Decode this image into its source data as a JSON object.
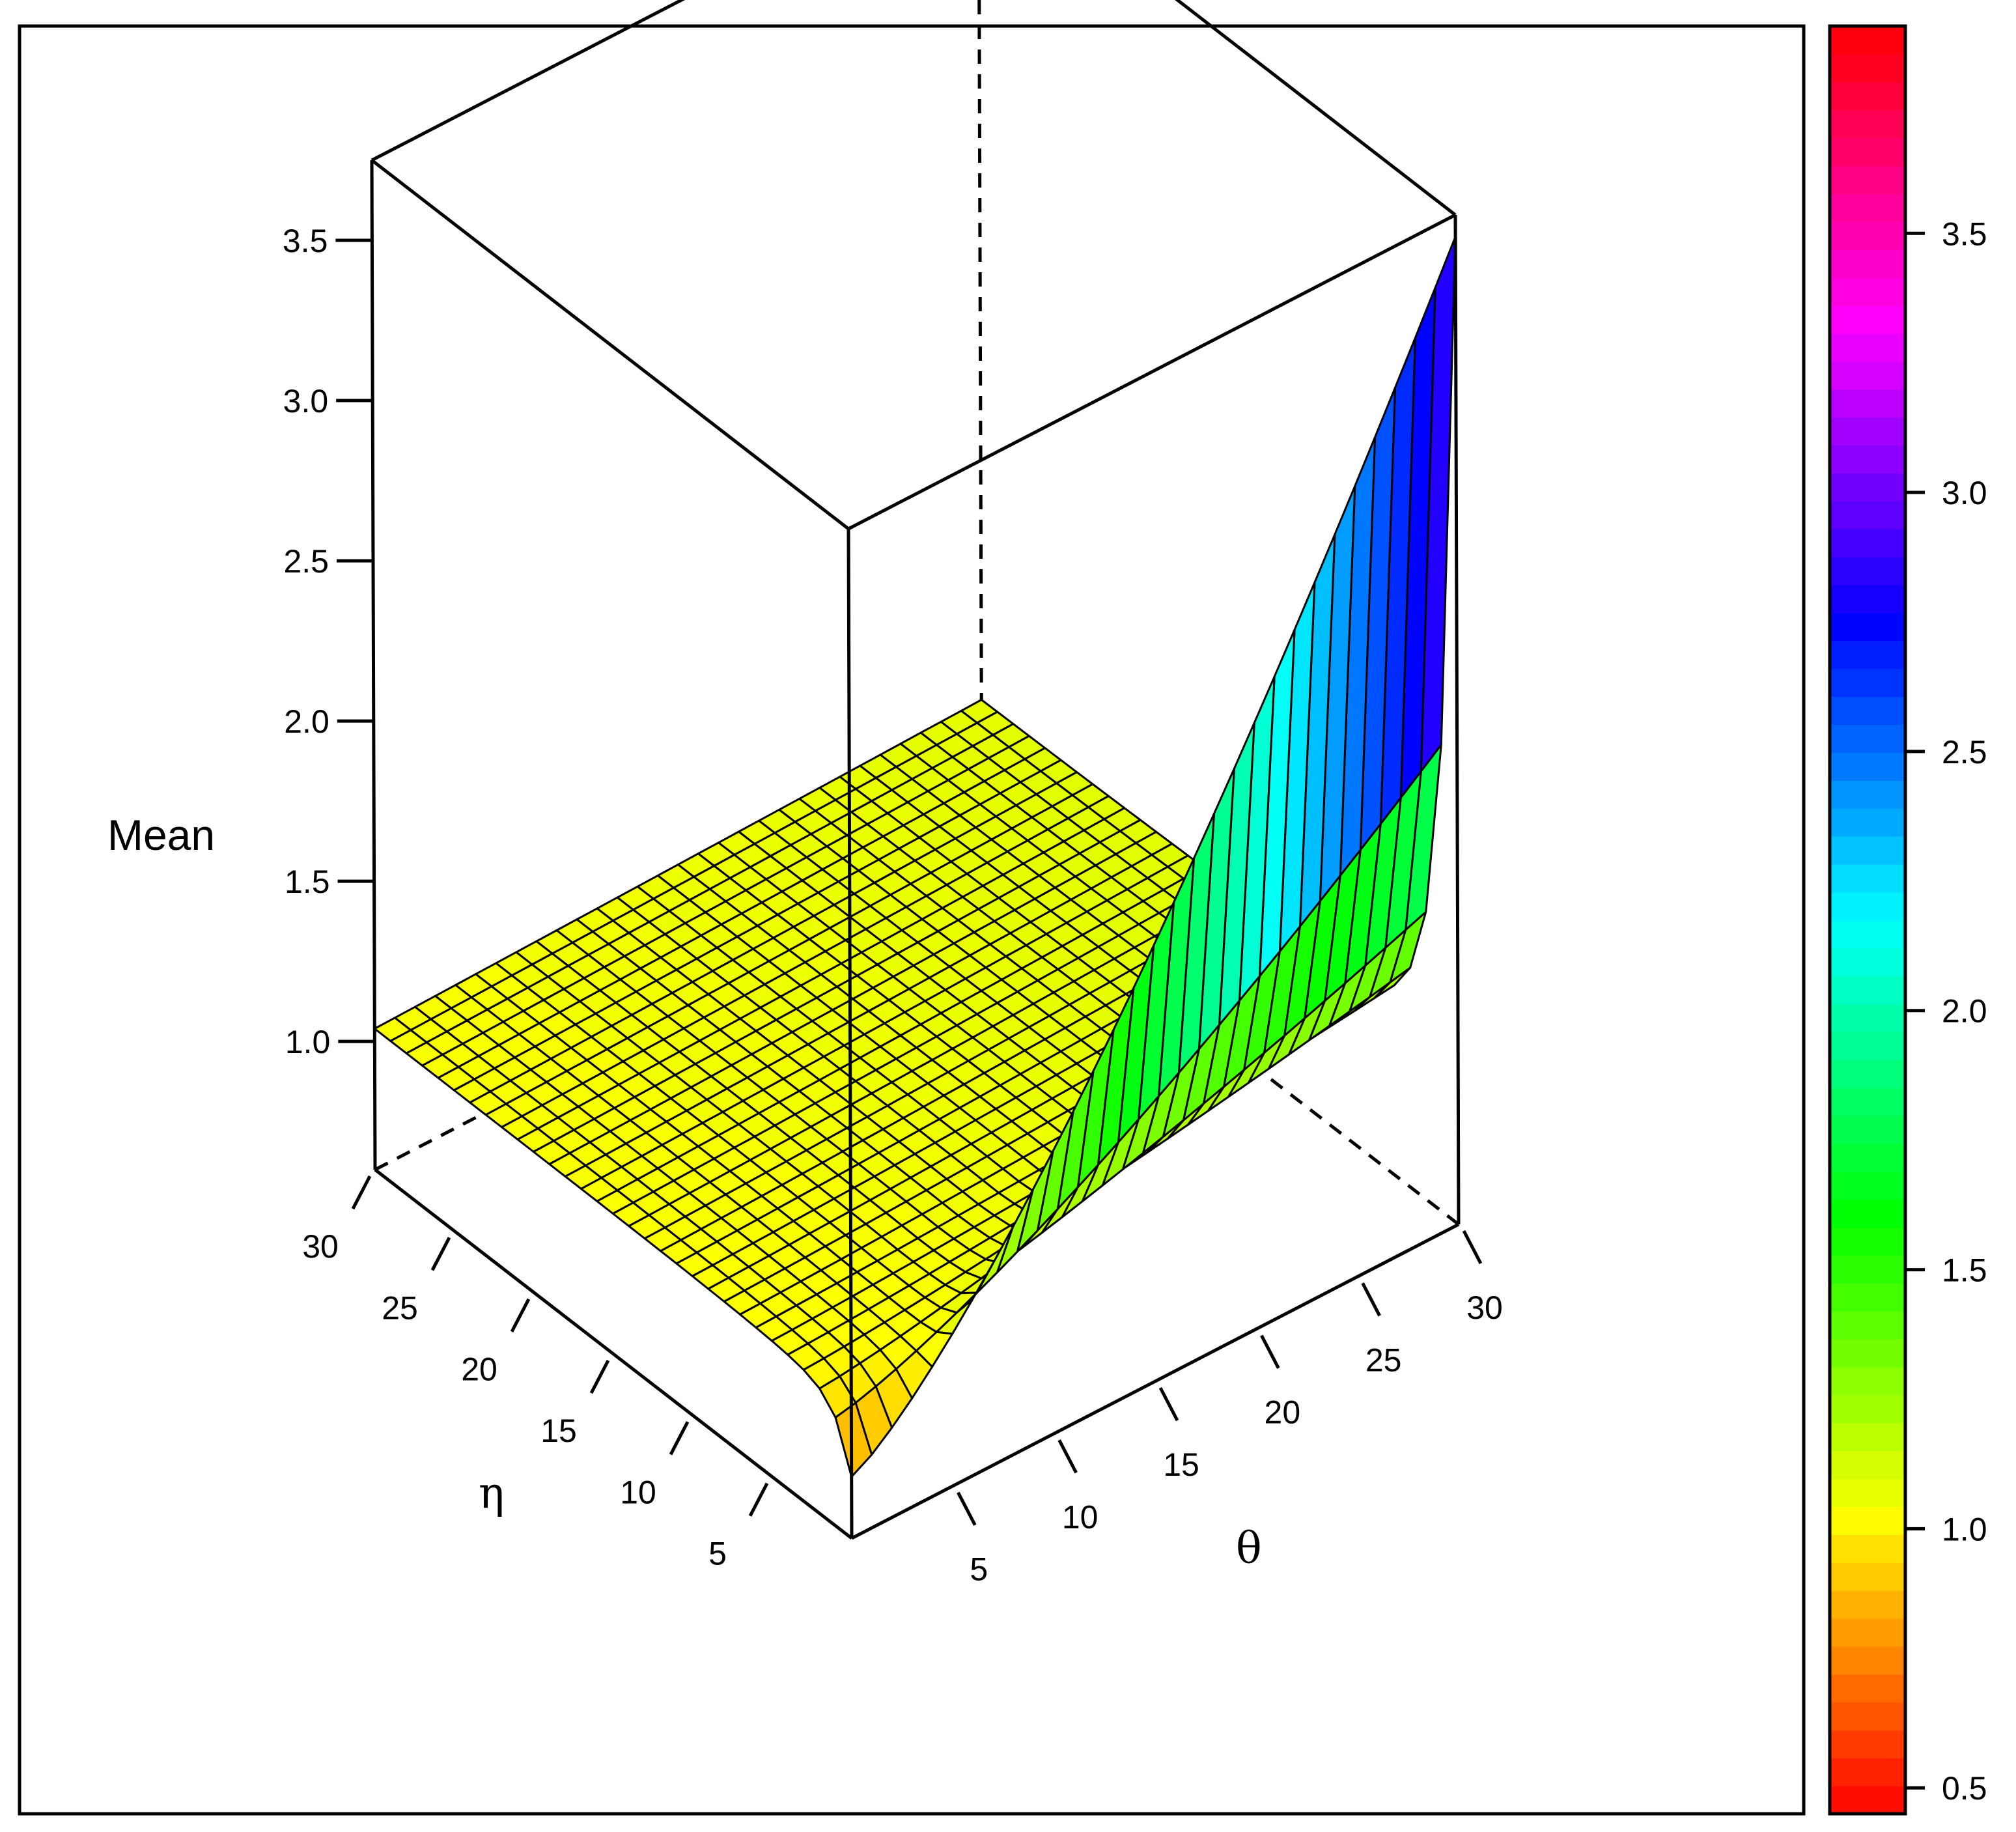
{
  "chart_data": {
    "type": "surface3d",
    "title": "",
    "zlabel": "Mean",
    "xlabel": "θ",
    "ylabel": "η",
    "x_ticks": [
      "5",
      "10",
      "15",
      "20",
      "25",
      "30"
    ],
    "y_ticks": [
      "5",
      "10",
      "15",
      "20",
      "25",
      "30"
    ],
    "z_ticks": [
      "1.0",
      "1.5",
      "2.0",
      "2.5",
      "3.0",
      "3.5"
    ],
    "xlim": [
      0,
      30
    ],
    "ylim": [
      0,
      30
    ],
    "zlim": [
      0.6,
      3.75
    ],
    "grid_size": 31,
    "surface_samples": [
      {
        "theta": 0,
        "eta": 0,
        "mean": 0.8
      },
      {
        "theta": 0,
        "eta": 2,
        "mean": 1.0
      },
      {
        "theta": 0,
        "eta": 30,
        "mean": 1.0
      },
      {
        "theta": 2,
        "eta": 2,
        "mean": 1.1
      },
      {
        "theta": 30,
        "eta": 0,
        "mean": 3.6
      },
      {
        "theta": 30,
        "eta": 1,
        "mean": 2.3
      },
      {
        "theta": 30,
        "eta": 2,
        "mean": 1.9
      },
      {
        "theta": 30,
        "eta": 4,
        "mean": 1.5
      },
      {
        "theta": 30,
        "eta": 30,
        "mean": 1.0
      }
    ],
    "colorbar": {
      "range": [
        0.45,
        3.9
      ],
      "ticks": [
        "0.5",
        "1.0",
        "1.5",
        "2.0",
        "2.5",
        "3.0",
        "3.5"
      ],
      "palette": "rainbow (red → yellow → green → cyan → blue → magenta → red)"
    },
    "box": "full",
    "grid": false,
    "colors": {
      "frame": "#000000",
      "mesh": "#000000",
      "background": "#ffffff"
    }
  }
}
